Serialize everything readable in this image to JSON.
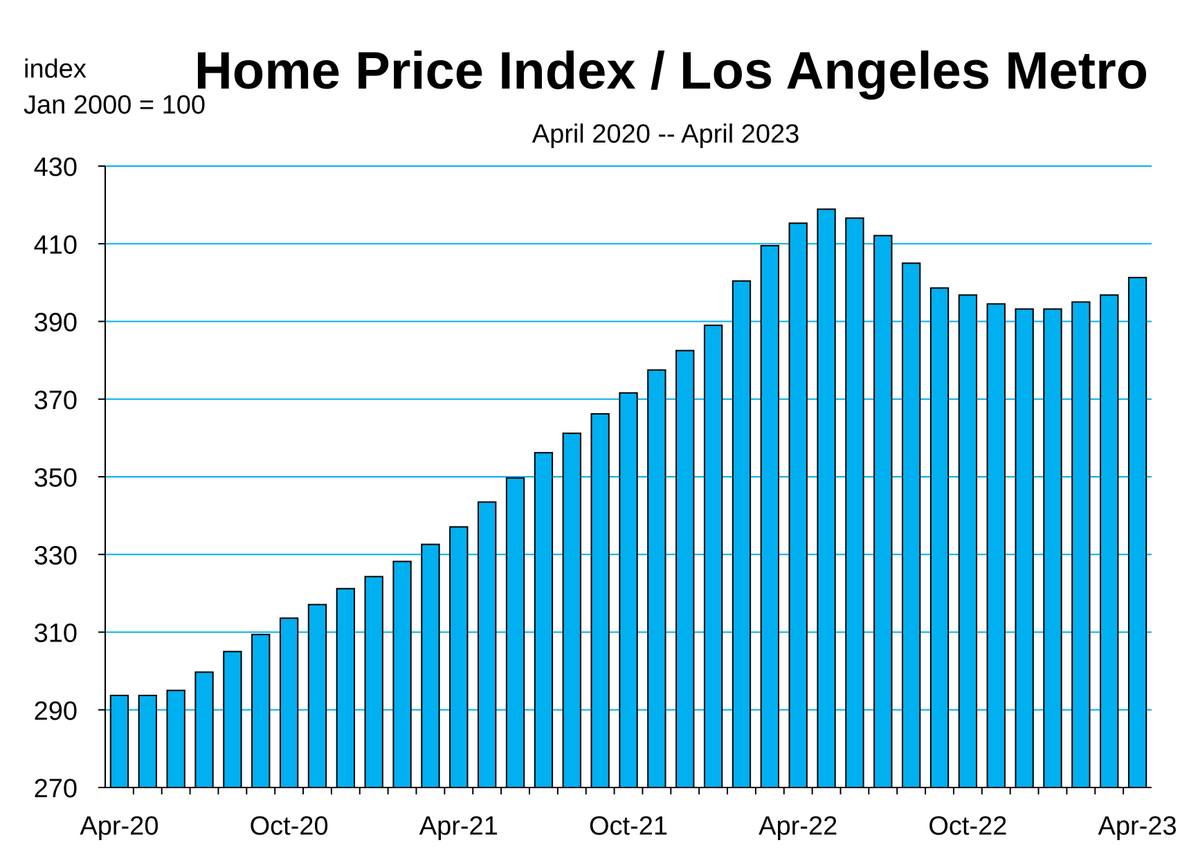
{
  "chart_data": {
    "type": "bar",
    "title": "Home Price Index / Los Angeles Metro",
    "subtitle": "April 2020 -- April 2023",
    "ylabel_line1": "index",
    "ylabel_line2": "Jan 2000 = 100",
    "ylim": [
      270,
      430
    ],
    "yticks": [
      270,
      290,
      310,
      330,
      350,
      370,
      390,
      410,
      430
    ],
    "ytick_labels": [
      "270",
      "290",
      "310",
      "330",
      "350",
      "370",
      "390",
      "410",
      "430"
    ],
    "grid": true,
    "xtick_labels": [
      {
        "index": 0,
        "label": "Apr-20"
      },
      {
        "index": 6,
        "label": "Oct-20"
      },
      {
        "index": 12,
        "label": "Apr-21"
      },
      {
        "index": 18,
        "label": "Oct-21"
      },
      {
        "index": 24,
        "label": "Apr-22"
      },
      {
        "index": 30,
        "label": "Oct-22"
      },
      {
        "index": 36,
        "label": "Apr-23"
      }
    ],
    "categories": [
      "Apr-20",
      "May-20",
      "Jun-20",
      "Jul-20",
      "Aug-20",
      "Sep-20",
      "Oct-20",
      "Nov-20",
      "Dec-20",
      "Jan-21",
      "Feb-21",
      "Mar-21",
      "Apr-21",
      "May-21",
      "Jun-21",
      "Jul-21",
      "Aug-21",
      "Sep-21",
      "Oct-21",
      "Nov-21",
      "Dec-21",
      "Jan-22",
      "Feb-22",
      "Mar-22",
      "Apr-22",
      "May-22",
      "Jun-22",
      "Jul-22",
      "Aug-22",
      "Sep-22",
      "Oct-22",
      "Nov-22",
      "Dec-22",
      "Jan-23",
      "Feb-23",
      "Mar-23",
      "Apr-23"
    ],
    "values": [
      293.7,
      293.7,
      295.0,
      299.7,
      305.0,
      309.4,
      313.6,
      317.1,
      321.2,
      324.3,
      328.2,
      332.6,
      337.1,
      343.5,
      349.7,
      356.2,
      361.2,
      366.2,
      371.6,
      377.5,
      382.5,
      389.0,
      400.4,
      409.5,
      415.3,
      418.9,
      416.6,
      412.1,
      405.0,
      398.6,
      396.8,
      394.5,
      393.2,
      393.2,
      395.0,
      396.8,
      401.3
    ],
    "colors": {
      "bar_fill": "#00b0f0",
      "bar_stroke": "#000000",
      "grid": "#00b0f0",
      "axis": "#000000"
    }
  }
}
